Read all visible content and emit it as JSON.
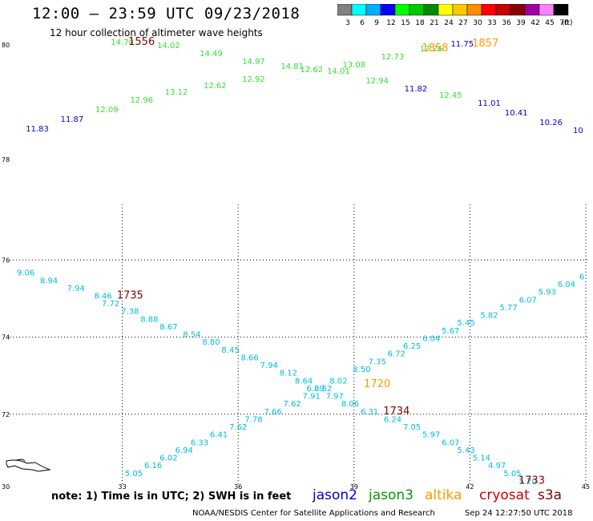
{
  "header": {
    "title": "12:00 – 23:59 UTC 09/23/2018",
    "subtitle": "12 hour collection of altimeter wave heights"
  },
  "color_scale": {
    "labels": [
      "3",
      "6",
      "9",
      "12",
      "15",
      "18",
      "21",
      "24",
      "27",
      "30",
      "33",
      "36",
      "39",
      "42",
      "45",
      "70"
    ],
    "colors": [
      "#808080",
      "#00ffff",
      "#00b0ff",
      "#0000ff",
      "#00ff00",
      "#00c800",
      "#008c00",
      "#ffff00",
      "#ffc800",
      "#ff8c00",
      "#ff0000",
      "#c80000",
      "#8c0000",
      "#a000a0",
      "#ff80ff",
      "#000000"
    ],
    "unit": "(ft)"
  },
  "legend": {
    "note": "note:  1) Time is in UTC;  2) SWH is in feet",
    "satellites": [
      {
        "name": "jason2",
        "color": "#0000cc"
      },
      {
        "name": "jason3",
        "color": "#009900"
      },
      {
        "name": "altika",
        "color": "#ff9900"
      },
      {
        "name": "cryosat",
        "color": "#cc0000"
      },
      {
        "name": "s3a",
        "color": "#880000"
      }
    ]
  },
  "footer": {
    "credit": "NOAA/NESDIS Center for Satellite Applications and Research",
    "timestamp": "Sep 24 12:27:50 UTC 2018"
  },
  "chart_data": {
    "type": "scatter",
    "x_ticks": [
      33,
      36,
      39,
      42,
      45
    ],
    "x_tick_labels": [
      "30",
      "33",
      "36",
      "39",
      "42",
      "45"
    ],
    "y_ticks": [
      78,
      76,
      74,
      72,
      70
    ],
    "y_tick_labels": [
      "80",
      "78",
      "76",
      "74",
      "72",
      "70"
    ],
    "y_break_labels": [
      "80",
      "78"
    ],
    "grid": true,
    "colors": {
      "cyan": "#00bcdc",
      "green": "#33dd33",
      "blue": "#0000cc",
      "orange": "#ff9900",
      "darkred": "#880000"
    },
    "upper_values": [
      {
        "t": "11.83",
        "c": "blue",
        "lon": 30.8,
        "lat": 79.8
      },
      {
        "t": "11.87",
        "c": "blue",
        "lon": 31.7,
        "lat": 80.4
      },
      {
        "t": "12.09",
        "c": "green",
        "lon": 32.6,
        "lat": 81.0
      },
      {
        "t": "12.96",
        "c": "green",
        "lon": 33.5,
        "lat": 81.6
      },
      {
        "t": "13.12",
        "c": "green",
        "lon": 34.4,
        "lat": 82.1
      },
      {
        "t": "12.62",
        "c": "green",
        "lon": 35.4,
        "lat": 82.5
      },
      {
        "t": "12.92",
        "c": "green",
        "lon": 36.4,
        "lat": 82.9
      },
      {
        "t": "14.70",
        "c": "green",
        "lon": 33.0,
        "lat": 85.2
      },
      {
        "t": "14.02",
        "c": "green",
        "lon": 34.2,
        "lat": 85.0
      },
      {
        "t": "14.49",
        "c": "green",
        "lon": 35.3,
        "lat": 84.5
      },
      {
        "t": "14.97",
        "c": "green",
        "lon": 36.4,
        "lat": 84.0
      },
      {
        "t": "14.81",
        "c": "green",
        "lon": 37.4,
        "lat": 83.7
      },
      {
        "t": "12.62",
        "c": "green",
        "lon": 37.9,
        "lat": 83.5
      },
      {
        "t": "14.01",
        "c": "green",
        "lon": 38.6,
        "lat": 83.4
      },
      {
        "t": "13.08",
        "c": "green",
        "lon": 39.0,
        "lat": 83.8
      },
      {
        "t": "12.94",
        "c": "green",
        "lon": 39.6,
        "lat": 82.8
      },
      {
        "t": "12.73",
        "c": "green",
        "lon": 40.0,
        "lat": 84.3
      },
      {
        "t": "11.82",
        "c": "blue",
        "lon": 40.6,
        "lat": 82.3
      },
      {
        "t": "12.26",
        "c": "green",
        "lon": 41.0,
        "lat": 84.8
      },
      {
        "t": "12.45",
        "c": "green",
        "lon": 41.5,
        "lat": 81.9
      },
      {
        "t": "11.75",
        "c": "blue",
        "lon": 41.8,
        "lat": 85.1
      },
      {
        "t": "11.01",
        "c": "blue",
        "lon": 42.5,
        "lat": 81.4
      },
      {
        "t": "10.41",
        "c": "blue",
        "lon": 43.2,
        "lat": 80.8
      },
      {
        "t": "10.26",
        "c": "blue",
        "lon": 44.1,
        "lat": 80.2
      },
      {
        "t": "10",
        "c": "blue",
        "lon": 44.8,
        "lat": 79.7
      }
    ],
    "upper_times": [
      {
        "t": "1556",
        "c": "darkred",
        "lon": 33.5,
        "lat": 85.2
      },
      {
        "t": "1858",
        "c": "orange",
        "lon": 41.1,
        "lat": 84.8
      },
      {
        "t": "1857",
        "c": "orange",
        "lon": 42.4,
        "lat": 85.1
      }
    ],
    "lower_values": [
      {
        "t": "9.06",
        "c": "cyan",
        "lon": 30.5,
        "lat": 75.6
      },
      {
        "t": "8.94",
        "c": "cyan",
        "lon": 31.1,
        "lat": 75.4
      },
      {
        "t": "7.94",
        "c": "cyan",
        "lon": 31.8,
        "lat": 75.2
      },
      {
        "t": "8.46",
        "c": "cyan",
        "lon": 32.5,
        "lat": 75.0
      },
      {
        "t": "7.72",
        "c": "cyan",
        "lon": 32.7,
        "lat": 74.8
      },
      {
        "t": "7.38",
        "c": "cyan",
        "lon": 33.2,
        "lat": 74.6
      },
      {
        "t": "8.88",
        "c": "cyan",
        "lon": 33.7,
        "lat": 74.4
      },
      {
        "t": "8.67",
        "c": "cyan",
        "lon": 34.2,
        "lat": 74.2
      },
      {
        "t": "8.54",
        "c": "cyan",
        "lon": 34.8,
        "lat": 74.0
      },
      {
        "t": "8.80",
        "c": "cyan",
        "lon": 35.3,
        "lat": 73.8
      },
      {
        "t": "8.45",
        "c": "cyan",
        "lon": 35.8,
        "lat": 73.6
      },
      {
        "t": "8.66",
        "c": "cyan",
        "lon": 36.3,
        "lat": 73.4
      },
      {
        "t": "7.94",
        "c": "cyan",
        "lon": 36.8,
        "lat": 73.2
      },
      {
        "t": "8.12",
        "c": "cyan",
        "lon": 37.3,
        "lat": 73.0
      },
      {
        "t": "8.64",
        "c": "cyan",
        "lon": 37.7,
        "lat": 72.8
      },
      {
        "t": "6.89",
        "c": "cyan",
        "lon": 38.0,
        "lat": 72.6
      },
      {
        "t": "8.52",
        "c": "cyan",
        "lon": 38.2,
        "lat": 72.6
      },
      {
        "t": "8.02",
        "c": "cyan",
        "lon": 38.6,
        "lat": 72.8
      },
      {
        "t": "8.50",
        "c": "cyan",
        "lon": 39.2,
        "lat": 73.1
      },
      {
        "t": "7.35",
        "c": "cyan",
        "lon": 39.6,
        "lat": 73.3
      },
      {
        "t": "6.72",
        "c": "cyan",
        "lon": 40.1,
        "lat": 73.5
      },
      {
        "t": "6.25",
        "c": "cyan",
        "lon": 40.5,
        "lat": 73.7
      },
      {
        "t": "6.04",
        "c": "cyan",
        "lon": 41.0,
        "lat": 73.9
      },
      {
        "t": "5.67",
        "c": "cyan",
        "lon": 41.5,
        "lat": 74.1
      },
      {
        "t": "5.45",
        "c": "cyan",
        "lon": 41.9,
        "lat": 74.3
      },
      {
        "t": "5.82",
        "c": "cyan",
        "lon": 42.5,
        "lat": 74.5
      },
      {
        "t": "5.77",
        "c": "cyan",
        "lon": 43.0,
        "lat": 74.7
      },
      {
        "t": "6.07",
        "c": "cyan",
        "lon": 43.5,
        "lat": 74.9
      },
      {
        "t": "5.93",
        "c": "cyan",
        "lon": 44.0,
        "lat": 75.1
      },
      {
        "t": "6.04",
        "c": "cyan",
        "lon": 44.5,
        "lat": 75.3
      },
      {
        "t": "6",
        "c": "cyan",
        "lon": 44.9,
        "lat": 75.5
      },
      {
        "t": "7.91",
        "c": "cyan",
        "lon": 37.9,
        "lat": 72.4
      },
      {
        "t": "7.97",
        "c": "cyan",
        "lon": 38.5,
        "lat": 72.4
      },
      {
        "t": "8.06",
        "c": "cyan",
        "lon": 38.9,
        "lat": 72.2
      },
      {
        "t": "6.31",
        "c": "cyan",
        "lon": 39.4,
        "lat": 72.0
      },
      {
        "t": "6.24",
        "c": "cyan",
        "lon": 40.0,
        "lat": 71.8
      },
      {
        "t": "7.05",
        "c": "cyan",
        "lon": 40.5,
        "lat": 71.6
      },
      {
        "t": "5.97",
        "c": "cyan",
        "lon": 41.0,
        "lat": 71.4
      },
      {
        "t": "6.07",
        "c": "cyan",
        "lon": 41.5,
        "lat": 71.2
      },
      {
        "t": "5.43",
        "c": "cyan",
        "lon": 41.9,
        "lat": 71.0
      },
      {
        "t": "5.14",
        "c": "cyan",
        "lon": 42.3,
        "lat": 70.8
      },
      {
        "t": "4.97",
        "c": "cyan",
        "lon": 42.7,
        "lat": 70.6
      },
      {
        "t": "5.05",
        "c": "cyan",
        "lon": 43.1,
        "lat": 70.4
      },
      {
        "t": "5.20",
        "c": "cyan",
        "lon": 43.5,
        "lat": 70.2
      },
      {
        "t": "7.62",
        "c": "cyan",
        "lon": 37.4,
        "lat": 72.2
      },
      {
        "t": "7.66",
        "c": "cyan",
        "lon": 36.9,
        "lat": 72.0
      },
      {
        "t": "7.78",
        "c": "cyan",
        "lon": 36.4,
        "lat": 71.8
      },
      {
        "t": "7.62",
        "c": "cyan",
        "lon": 36.0,
        "lat": 71.6
      },
      {
        "t": "6.41",
        "c": "cyan",
        "lon": 35.5,
        "lat": 71.4
      },
      {
        "t": "6.33",
        "c": "cyan",
        "lon": 35.0,
        "lat": 71.2
      },
      {
        "t": "6.94",
        "c": "cyan",
        "lon": 34.6,
        "lat": 71.0
      },
      {
        "t": "6.02",
        "c": "cyan",
        "lon": 34.2,
        "lat": 70.8
      },
      {
        "t": "6.16",
        "c": "cyan",
        "lon": 33.8,
        "lat": 70.6
      },
      {
        "t": "5.05",
        "c": "cyan",
        "lon": 33.3,
        "lat": 70.4
      }
    ],
    "lower_times": [
      {
        "t": "1735",
        "c": "darkred",
        "lon": 33.2,
        "lat": 75.0
      },
      {
        "t": "1720",
        "c": "orange",
        "lon": 39.6,
        "lat": 72.7
      },
      {
        "t": "1734",
        "c": "darkred",
        "lon": 40.1,
        "lat": 72.0
      },
      {
        "t": "1733",
        "c": "darkred",
        "lon": 43.6,
        "lat": 70.2
      }
    ]
  }
}
